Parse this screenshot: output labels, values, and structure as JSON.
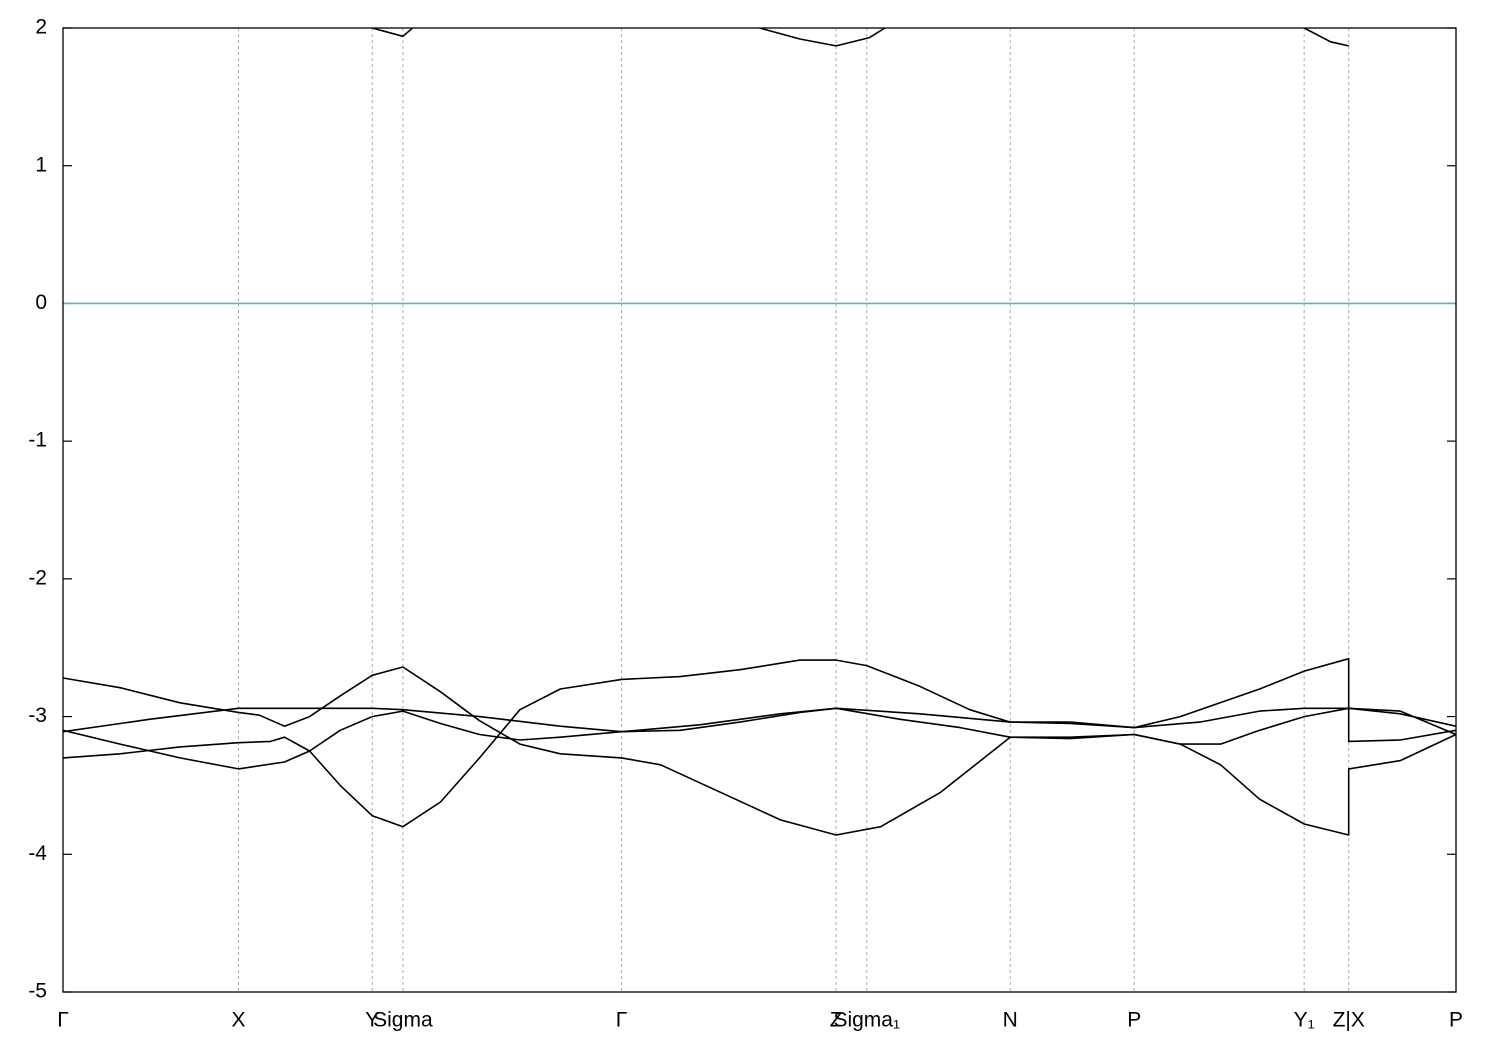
{
  "chart_data": {
    "type": "line",
    "xlim": [
      0,
      1
    ],
    "ylim": [
      -5,
      2
    ],
    "yticks": [
      -5,
      -4,
      -3,
      -2,
      -1,
      0,
      1,
      2
    ],
    "xticks": [
      {
        "value": 0,
        "label": "Γ"
      },
      {
        "value": 0.126,
        "label": "X"
      },
      {
        "value": 0.222,
        "label": "Y"
      },
      {
        "value": 0.244,
        "label": "Sigma"
      },
      {
        "value": 0.401,
        "label": "Γ"
      },
      {
        "value": 0.555,
        "label": "Z"
      },
      {
        "value": 0.577,
        "label": "Sigma₁"
      },
      {
        "value": 0.68,
        "label": "N"
      },
      {
        "value": 0.769,
        "label": "P"
      },
      {
        "value": 0.891,
        "label": "Y₁"
      },
      {
        "value": 0.923,
        "label": "Z|X"
      },
      {
        "value": 1,
        "label": "P"
      }
    ],
    "xgrid": true,
    "reference_line": {
      "value": 0,
      "color": "#5ab4c8"
    },
    "series": [
      {
        "color": "#000000",
        "x": [
          0,
          0.041,
          0.084,
          0.126,
          0.141,
          0.159,
          0.177,
          0.199,
          0.222,
          0.244,
          0.271,
          0.299,
          0.328,
          0.357,
          0.401,
          0.429,
          0.472,
          0.515,
          0.555,
          0.587,
          0.63,
          0.68,
          0.723,
          0.769,
          0.802,
          0.831,
          0.859,
          0.891,
          0.923,
          0.923,
          0.96,
          1
        ],
        "values": [
          -2.72,
          -2.79,
          -2.9,
          -2.97,
          -2.99,
          -3.07,
          -3.0,
          -2.85,
          -2.7,
          -2.64,
          -2.82,
          -3.03,
          -3.2,
          -3.27,
          -3.3,
          -3.35,
          -3.55,
          -3.75,
          -3.86,
          -3.8,
          -3.55,
          -3.15,
          -3.15,
          -3.13,
          -3.2,
          -3.35,
          -3.6,
          -3.78,
          -3.86,
          -3.38,
          -3.32,
          -3.13
        ]
      },
      {
        "color": "#000000",
        "x": [
          0,
          0.041,
          0.084,
          0.126,
          0.149,
          0.159,
          0.177,
          0.199,
          0.222,
          0.244,
          0.271,
          0.299,
          0.328,
          0.357,
          0.401,
          0.443,
          0.486,
          0.529,
          0.555,
          0.577,
          0.615,
          0.651,
          0.68,
          0.723,
          0.769,
          0.802,
          0.859,
          0.891,
          0.923,
          0.923,
          0.96,
          1
        ],
        "values": [
          -3.3,
          -3.27,
          -3.22,
          -3.19,
          -3.18,
          -3.15,
          -3.25,
          -3.5,
          -3.72,
          -3.8,
          -3.62,
          -3.3,
          -2.95,
          -2.8,
          -2.73,
          -2.71,
          -2.66,
          -2.59,
          -2.59,
          -2.63,
          -2.78,
          -2.95,
          -3.04,
          -3.04,
          -3.08,
          -3.0,
          -2.8,
          -2.67,
          -2.58,
          -3.18,
          -3.17,
          -3.1
        ]
      },
      {
        "color": "#000000",
        "x": [
          0,
          0.062,
          0.126,
          0.17,
          0.222,
          0.244,
          0.299,
          0.357,
          0.401,
          0.457,
          0.515,
          0.555,
          0.615,
          0.68,
          0.723,
          0.769,
          0.816,
          0.859,
          0.891,
          0.923,
          0.96,
          1
        ],
        "values": [
          -3.11,
          -3.02,
          -2.94,
          -2.94,
          -2.94,
          -2.95,
          -3.0,
          -3.07,
          -3.11,
          -3.06,
          -2.98,
          -2.94,
          -2.98,
          -3.04,
          -3.05,
          -3.08,
          -3.04,
          -2.96,
          -2.94,
          -2.94,
          -2.98,
          -3.07
        ]
      },
      {
        "color": "#000000",
        "x": [
          0,
          0.041,
          0.084,
          0.126,
          0.159,
          0.177,
          0.199,
          0.222,
          0.244,
          0.271,
          0.299,
          0.328,
          0.357,
          0.401,
          0.443,
          0.486,
          0.529,
          0.555,
          0.601,
          0.644,
          0.68,
          0.723,
          0.769,
          0.802,
          0.831,
          0.859,
          0.891,
          0.923,
          0.96,
          1
        ],
        "values": [
          -3.1,
          -3.2,
          -3.3,
          -3.38,
          -3.33,
          -3.25,
          -3.1,
          -3.0,
          -2.96,
          -3.05,
          -3.13,
          -3.17,
          -3.15,
          -3.11,
          -3.1,
          -3.04,
          -2.97,
          -2.94,
          -3.02,
          -3.08,
          -3.15,
          -3.16,
          -3.13,
          -3.2,
          -3.2,
          -3.1,
          -3.0,
          -2.94,
          -2.96,
          -3.13
        ]
      },
      {
        "color": "#000000",
        "x": [
          0.222,
          0.244,
          0.251
        ],
        "values": [
          2.0,
          1.94,
          2.0
        ]
      },
      {
        "color": "#000000",
        "x": [
          0.5,
          0.529,
          0.555,
          0.579,
          0.59
        ],
        "values": [
          2.0,
          1.92,
          1.87,
          1.93,
          2.0
        ]
      },
      {
        "color": "#000000",
        "x": [
          0.891,
          0.91,
          0.923
        ],
        "values": [
          2.0,
          1.9,
          1.87
        ]
      }
    ]
  }
}
